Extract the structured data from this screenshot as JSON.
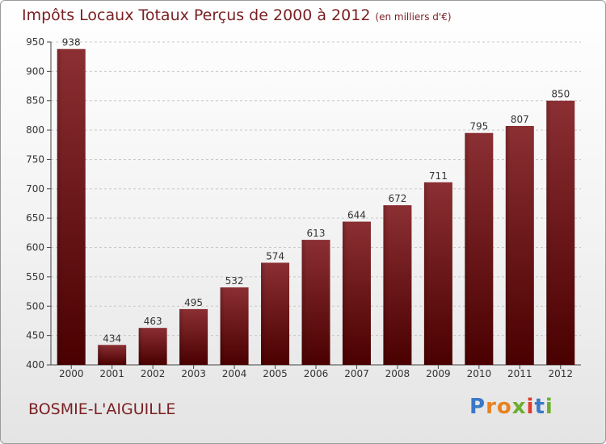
{
  "chart_data": {
    "type": "bar",
    "title": "Impôts Locaux Totaux Perçus de 2000 à 2012",
    "subtitle": "(en milliers d'€)",
    "categories": [
      "2000",
      "2001",
      "2002",
      "2003",
      "2004",
      "2005",
      "2006",
      "2007",
      "2008",
      "2009",
      "2010",
      "2011",
      "2012"
    ],
    "values": [
      938,
      434,
      463,
      495,
      532,
      574,
      613,
      644,
      672,
      711,
      795,
      807,
      850
    ],
    "ylim": [
      400,
      950
    ],
    "yticks": [
      400,
      450,
      500,
      550,
      600,
      650,
      700,
      750,
      800,
      850,
      900,
      950
    ],
    "xlabel": "",
    "ylabel": "",
    "grid": true,
    "bar_color": "#7a1f22"
  },
  "footer": {
    "commune": "BOSMIE-L'AIGUILLE",
    "logo_letters": [
      "P",
      "r",
      "o",
      "x",
      "i",
      "t",
      "i"
    ],
    "logo_colors": [
      "#3a78c8",
      "#e8821e",
      "#e8821e",
      "#6cae2e",
      "#e03a2a",
      "#3a78c8",
      "#6cae2e"
    ]
  }
}
